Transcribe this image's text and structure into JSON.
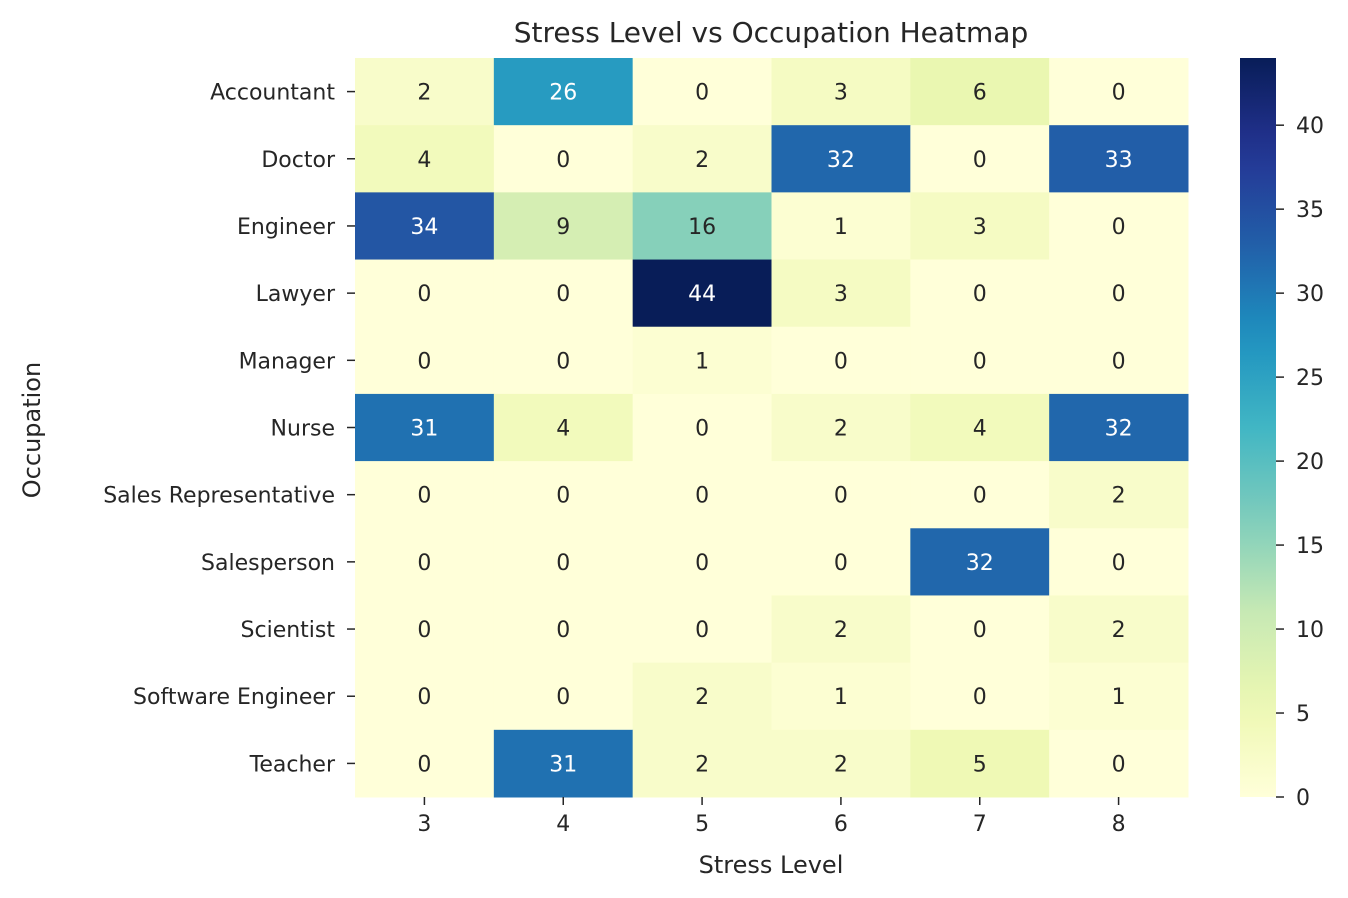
{
  "chart_data": {
    "type": "heatmap",
    "title": "Stress Level vs Occupation Heatmap",
    "xlabel": "Stress Level",
    "ylabel": "Occupation",
    "x_categories": [
      "3",
      "4",
      "5",
      "6",
      "7",
      "8"
    ],
    "y_categories": [
      "Accountant",
      "Doctor",
      "Engineer",
      "Lawyer",
      "Manager",
      "Nurse",
      "Sales Representative",
      "Salesperson",
      "Scientist",
      "Software Engineer",
      "Teacher"
    ],
    "values": [
      [
        2,
        26,
        0,
        3,
        6,
        0
      ],
      [
        4,
        0,
        2,
        32,
        0,
        33
      ],
      [
        34,
        9,
        16,
        1,
        3,
        0
      ],
      [
        0,
        0,
        44,
        3,
        0,
        0
      ],
      [
        0,
        0,
        1,
        0,
        0,
        0
      ],
      [
        31,
        4,
        0,
        2,
        4,
        32
      ],
      [
        0,
        0,
        0,
        0,
        0,
        2
      ],
      [
        0,
        0,
        0,
        0,
        32,
        0
      ],
      [
        0,
        0,
        0,
        2,
        0,
        2
      ],
      [
        0,
        0,
        2,
        1,
        0,
        1
      ],
      [
        0,
        31,
        2,
        2,
        5,
        0
      ]
    ],
    "colormap": "YlGnBu",
    "colorbar": {
      "range": [
        0,
        44
      ],
      "ticks": [
        0,
        5,
        10,
        15,
        20,
        25,
        30,
        35,
        40
      ]
    },
    "annotations": true,
    "grid": false,
    "legend": "colorbar-right"
  }
}
